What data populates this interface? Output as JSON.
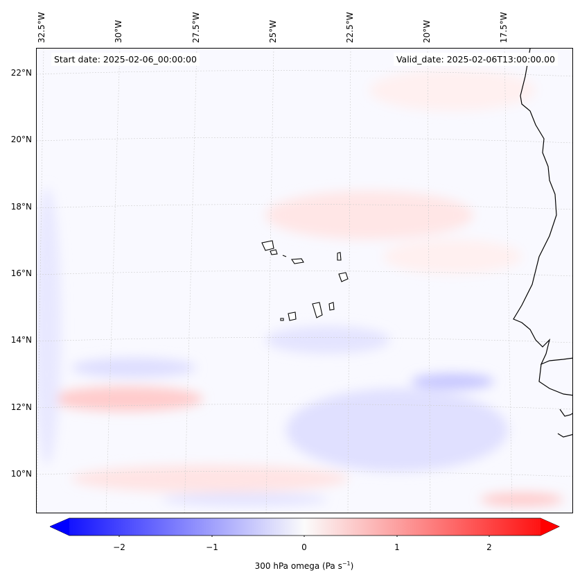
{
  "map": {
    "start_date": "Start date: 2025-02-06_00:00:00",
    "valid_date": "Valid_date: 2025-02-06T13:00:00.00",
    "lon_labels": [
      "32.5°W",
      "30°W",
      "27.5°W",
      "25°W",
      "22.5°W",
      "20°W",
      "17.5°W"
    ],
    "lat_labels": [
      "22°N",
      "20°N",
      "18°N",
      "16°N",
      "14°N",
      "12°N",
      "10°N"
    ]
  },
  "colorbar": {
    "ticks": [
      "−2",
      "−1",
      "0",
      "1",
      "2"
    ],
    "label": "300 hPa omega (Pa s",
    "label_sup": "−1",
    "label_end": ")",
    "range": [
      -2.5,
      2.5
    ],
    "negative_color": "#0000ff",
    "positive_color": "#ff0000"
  }
}
